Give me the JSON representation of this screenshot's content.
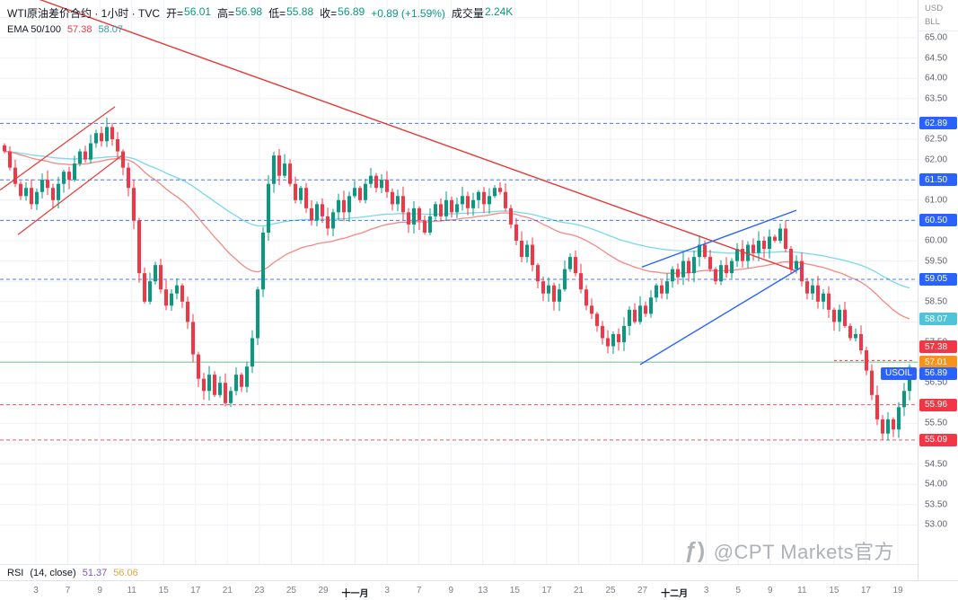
{
  "legend": {
    "title": "WTI原油差价合约 · 1小时 · TVC",
    "ohlc": {
      "o_label": "开=",
      "o_val": "56.01",
      "h_label": "高=",
      "h_val": "56.98",
      "l_label": "低=",
      "l_val": "55.88",
      "c_label": "收=",
      "c_val": "56.89",
      "change": "+0.89 (+1.59%)",
      "vol_label": "成交量",
      "vol_val": "2.24K"
    },
    "ema": {
      "label": "EMA 50/100",
      "ema50": "57.38",
      "ema100": "58.07"
    }
  },
  "rsi": {
    "label": "RSI",
    "params": "(14, close)",
    "value": "51.37",
    "value2": "56.06"
  },
  "price_axis": {
    "currency": "USD",
    "unit": "BLL"
  },
  "watermark": {
    "icon": "ƒ)",
    "text": "@CPT Markets官方"
  },
  "chart_data": {
    "type": "candlestick",
    "symbol": "USOIL",
    "title": "WTI原油差价合约 1小时",
    "ylabel": "USD/BLL",
    "ylim": [
      53.0,
      65.0
    ],
    "closes": [
      62.2,
      61.8,
      61.4,
      61.1,
      61.3,
      60.9,
      61.2,
      61.5,
      61.3,
      61.0,
      61.4,
      61.7,
      61.5,
      61.9,
      62.2,
      62.0,
      62.4,
      62.65,
      62.45,
      62.8,
      62.5,
      62.2,
      61.8,
      61.3,
      60.5,
      59.2,
      58.5,
      59.0,
      59.4,
      58.8,
      58.4,
      58.7,
      58.9,
      58.5,
      58.0,
      57.2,
      56.6,
      56.3,
      56.7,
      56.2,
      56.5,
      56.0,
      56.3,
      56.7,
      56.4,
      56.9,
      57.6,
      58.8,
      60.2,
      61.4,
      62.1,
      61.6,
      61.9,
      61.4,
      61.0,
      61.3,
      60.8,
      60.5,
      60.9,
      60.6,
      60.3,
      60.7,
      61.0,
      60.7,
      61.1,
      61.3,
      61.0,
      61.4,
      61.6,
      61.3,
      61.5,
      61.2,
      60.9,
      61.1,
      60.7,
      60.4,
      60.8,
      60.5,
      60.2,
      60.6,
      60.9,
      60.6,
      61.0,
      60.7,
      60.9,
      61.1,
      60.8,
      61.0,
      61.2,
      60.9,
      61.1,
      61.3,
      61.2,
      60.8,
      60.4,
      60.0,
      59.6,
      59.9,
      59.4,
      59.0,
      58.7,
      58.9,
      58.5,
      58.8,
      59.3,
      59.6,
      59.2,
      58.8,
      58.4,
      58.2,
      57.9,
      57.6,
      57.4,
      57.7,
      57.5,
      57.9,
      58.3,
      58.0,
      58.4,
      58.2,
      58.6,
      58.9,
      58.7,
      59.0,
      59.3,
      59.1,
      59.5,
      59.2,
      59.6,
      59.9,
      59.6,
      59.3,
      59.0,
      59.4,
      59.2,
      59.5,
      59.8,
      59.5,
      59.9,
      59.7,
      60.0,
      59.8,
      60.1,
      60.0,
      60.3,
      59.8,
      59.3,
      59.5,
      59.0,
      58.7,
      58.9,
      58.5,
      58.7,
      58.3,
      58.0,
      58.3,
      57.9,
      57.6,
      57.7,
      57.3,
      56.8,
      56.2,
      55.6,
      55.25,
      55.6,
      55.35,
      55.9,
      56.3,
      56.89
    ],
    "last_close": 56.89,
    "ema_periods": [
      50,
      100
    ],
    "y_axis": {
      "plain_ticks": [
        "65.00",
        "64.50",
        "64.00",
        "63.50",
        "62.50",
        "62.00",
        "61.00",
        "60.00",
        "59.50",
        "58.50",
        "57.50",
        "56.50",
        "55.50",
        "54.50",
        "54.00",
        "53.50",
        "53.00"
      ]
    },
    "x_axis": {
      "labels": [
        "3",
        "7",
        "9",
        "11",
        "15",
        "17",
        "21",
        "23",
        "25",
        "29",
        "十一月",
        "3",
        "7",
        "9",
        "13",
        "15",
        "17",
        "21",
        "25",
        "27",
        "十二月",
        "3",
        "5",
        "9",
        "11",
        "15",
        "17",
        "19"
      ]
    },
    "levels": [
      {
        "label": "62.89",
        "price": 62.89,
        "color": "#2962ff",
        "style": "dashed",
        "label_bg": "#2962ff"
      },
      {
        "label": "61.50",
        "price": 61.5,
        "color": "#2962ff",
        "style": "dashed",
        "label_bg": "#2962ff"
      },
      {
        "label": "60.50",
        "price": 60.5,
        "color": "#2962ff",
        "style": "dashed",
        "label_bg": "#2962ff"
      },
      {
        "label": "59.05",
        "price": 59.05,
        "color": "#2962ff",
        "style": "dashed",
        "label_bg": "#2962ff"
      },
      {
        "label": "57.01",
        "price": 57.01,
        "color": "#5fb97c",
        "style": "solid",
        "label_bg": "#f7931a"
      },
      {
        "label": "55.96",
        "price": 55.96,
        "color": "#f23645",
        "style": "dashed",
        "label_bg": "#f23645"
      },
      {
        "label": "55.09",
        "price": 55.09,
        "color": "#f23645",
        "style": "dashed",
        "label_bg": "#f23645"
      }
    ],
    "ema_labels": [
      {
        "label": "58.07",
        "price": 58.07,
        "bg": "#4fc3d7"
      },
      {
        "label": "57.38",
        "price": 57.38,
        "bg": "#f23645"
      }
    ],
    "price_label": {
      "tag": "USOIL",
      "label": "56.89",
      "price": 56.89,
      "bg": "#2962ff",
      "offset": 7
    },
    "trendlines": [
      {
        "i1": -1,
        "p1": 66.3,
        "i2": 147,
        "p2": 59.25,
        "color": "#e53935",
        "width": 1.4,
        "dash": "none"
      },
      {
        "i1": -0.8,
        "p1": 61.25,
        "i2": 20.5,
        "p2": 63.3,
        "color": "#e53935",
        "width": 1.2,
        "dash": "none"
      },
      {
        "i1": 2.5,
        "p1": 60.15,
        "i2": 22.3,
        "p2": 62.15,
        "color": "#e53935",
        "width": 1.2,
        "dash": "none"
      },
      {
        "i1": 118.3,
        "p1": 59.35,
        "i2": 147,
        "p2": 60.75,
        "color": "#2962ff",
        "width": 1.4,
        "dash": "none"
      },
      {
        "i1": 118,
        "p1": 56.95,
        "i2": 148,
        "p2": 59.35,
        "color": "#2962ff",
        "width": 1.4,
        "dash": "none"
      },
      {
        "i1": 154,
        "p1": 57.05,
        "i2": 168.5,
        "p2": 57.05,
        "color": "#f23645",
        "width": 1,
        "dash": "3 3"
      }
    ],
    "colors": {
      "up": "#089981",
      "down": "#f23645",
      "ema50": "#f5827a",
      "ema100": "#72d6e8",
      "grid": "#eef1f6"
    }
  }
}
